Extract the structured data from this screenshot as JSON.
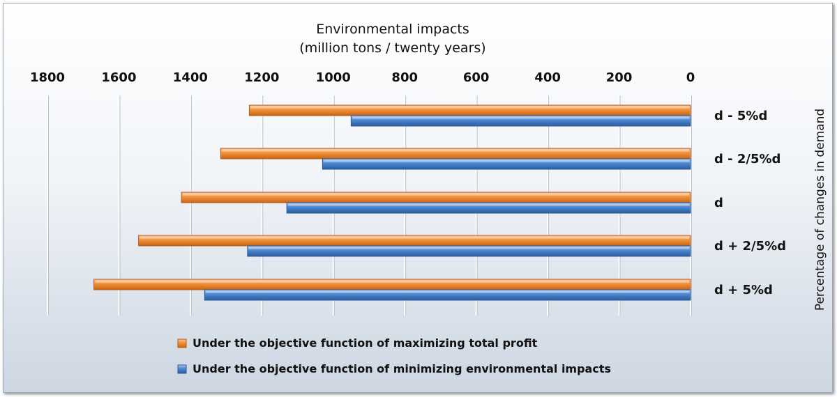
{
  "chart_data": {
    "type": "bar",
    "orientation": "horizontal",
    "x_axis_reversed": true,
    "x_axis_position": "top",
    "title": "",
    "xlabel_lines": [
      "Environmental impacts",
      "(million tons / twenty years)"
    ],
    "ylabel": "Percentage of changes in demand",
    "xlim": [
      0,
      1800
    ],
    "xticks": [
      "1800",
      "1600",
      "1400",
      "1200",
      "1000",
      "800",
      "600",
      "400",
      "200",
      "0"
    ],
    "grid": true,
    "legend_position": "bottom",
    "categories": [
      "d - 5%d",
      "d - 2/5%d",
      "d",
      "d + 2/5%d",
      "d + 5%d"
    ],
    "series": [
      {
        "name": "Under the objective function of maximizing total profit",
        "color": "#f0913a",
        "values": [
          1235,
          1315,
          1425,
          1545,
          1670
        ]
      },
      {
        "name": "Under the objective function of minimizing environmental impacts",
        "color": "#4a86cf",
        "values": [
          950,
          1030,
          1130,
          1240,
          1360
        ]
      }
    ]
  }
}
